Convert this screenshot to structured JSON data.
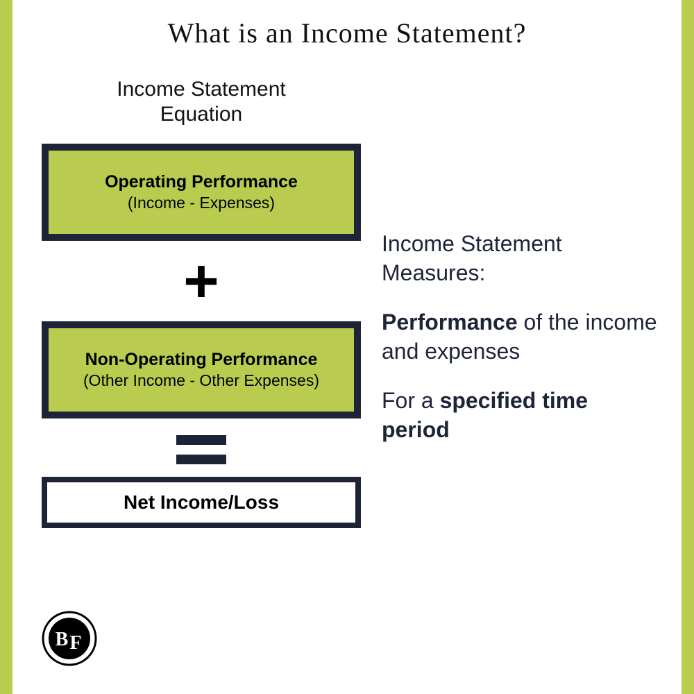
{
  "colors": {
    "accent": "#b9cc4f",
    "box_border": "#1e2438",
    "box_fill": "#b9cc4f",
    "text_dark": "#1e2438",
    "background": "#ffffff"
  },
  "title": "What is an Income Statement?",
  "equation": {
    "heading_line1": "Income Statement",
    "heading_line2": "Equation",
    "box1": {
      "title": "Operating Performance",
      "subtitle": "(Income - Expenses)",
      "border_width": 10,
      "height": 140
    },
    "box2": {
      "title": "Non-Operating Performance",
      "subtitle": "(Other Income - Other Expenses)",
      "border_width": 10,
      "height": 140
    },
    "result": {
      "label": "Net Income/Loss",
      "border_width": 8,
      "height": 74
    }
  },
  "description": {
    "intro": "Income Statement Measures:",
    "line1_bold": "Performance",
    "line1_rest": " of the income and expenses",
    "line2_prefix": "For a ",
    "line2_bold": "specified time period"
  },
  "logo": {
    "letters": "BF"
  }
}
